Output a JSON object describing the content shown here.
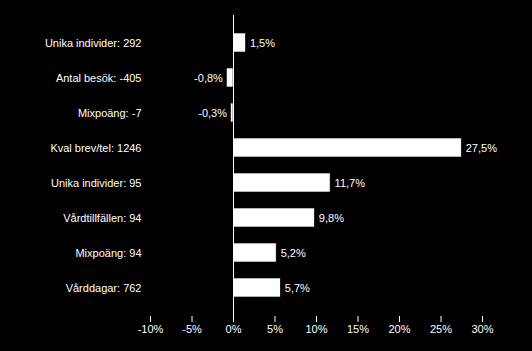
{
  "chart_data": {
    "type": "bar",
    "orientation": "horizontal",
    "categories": [
      "Unika individer: 292",
      "Antal besök: -405",
      "Mixpoäng: -7",
      "Kval brev/tel: 1246",
      "Unika individer: 95",
      "Vårdtillfällen: 94",
      "Mixpoäng: 94",
      "Vårddagar: 762"
    ],
    "values": [
      1.5,
      -0.8,
      -0.3,
      27.5,
      11.7,
      9.8,
      5.2,
      5.7
    ],
    "value_labels": [
      "1,5%",
      "-0,8%",
      "-0,3%",
      "27,5%",
      "11,7%",
      "9,8%",
      "5,2%",
      "5,7%"
    ],
    "data_labels": true,
    "color": "#ffffff",
    "xlim": [
      -10,
      30
    ],
    "xticks": [
      {
        "value": -10,
        "label": "-10%"
      },
      {
        "value": -5,
        "label": "-5%"
      },
      {
        "value": 0,
        "label": "0%"
      },
      {
        "value": 5,
        "label": "5%"
      },
      {
        "value": 10,
        "label": "10%"
      },
      {
        "value": 15,
        "label": "15%"
      },
      {
        "value": 20,
        "label": "20%"
      },
      {
        "value": 25,
        "label": "25%"
      },
      {
        "value": 30,
        "label": "30%"
      }
    ]
  }
}
